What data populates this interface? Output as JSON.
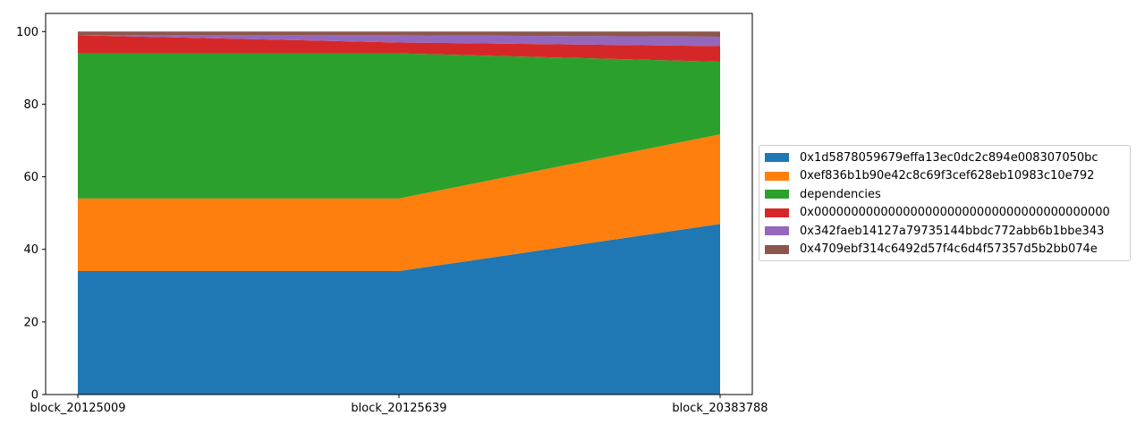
{
  "chart_data": {
    "type": "area",
    "stacked": true,
    "categories": [
      "block_20125009",
      "block_20125639",
      "block_20383788"
    ],
    "series": [
      {
        "name": "0x1d5878059679effa13ec0dc2c894e008307050bc",
        "color": "#1f77b4",
        "values": [
          34,
          34,
          47
        ]
      },
      {
        "name": "0xef836b1b90e42c8c69f3cef628eb10983c10e792",
        "color": "#ff7f0e",
        "values": [
          20,
          20,
          24.7
        ]
      },
      {
        "name": "dependencies",
        "color": "#2ca02c",
        "values": [
          40,
          40,
          20
        ]
      },
      {
        "name": "0x0000000000000000000000000000000000000000",
        "color": "#d62728",
        "values": [
          5,
          3,
          4.3
        ]
      },
      {
        "name": "0x342faeb14127a79735144bbdc772abb6b1bbe343",
        "color": "#9467bd",
        "values": [
          0,
          2,
          2.6
        ]
      },
      {
        "name": "0x4709ebf314c6492d57f4c6d4f57357d5b2bb074e",
        "color": "#8c564b",
        "values": [
          1,
          1,
          1.4
        ]
      }
    ],
    "ylim": [
      0,
      105
    ],
    "yticks": [
      "0",
      "20",
      "40",
      "60",
      "80",
      "100"
    ],
    "grid": false,
    "legend_position": "right"
  }
}
